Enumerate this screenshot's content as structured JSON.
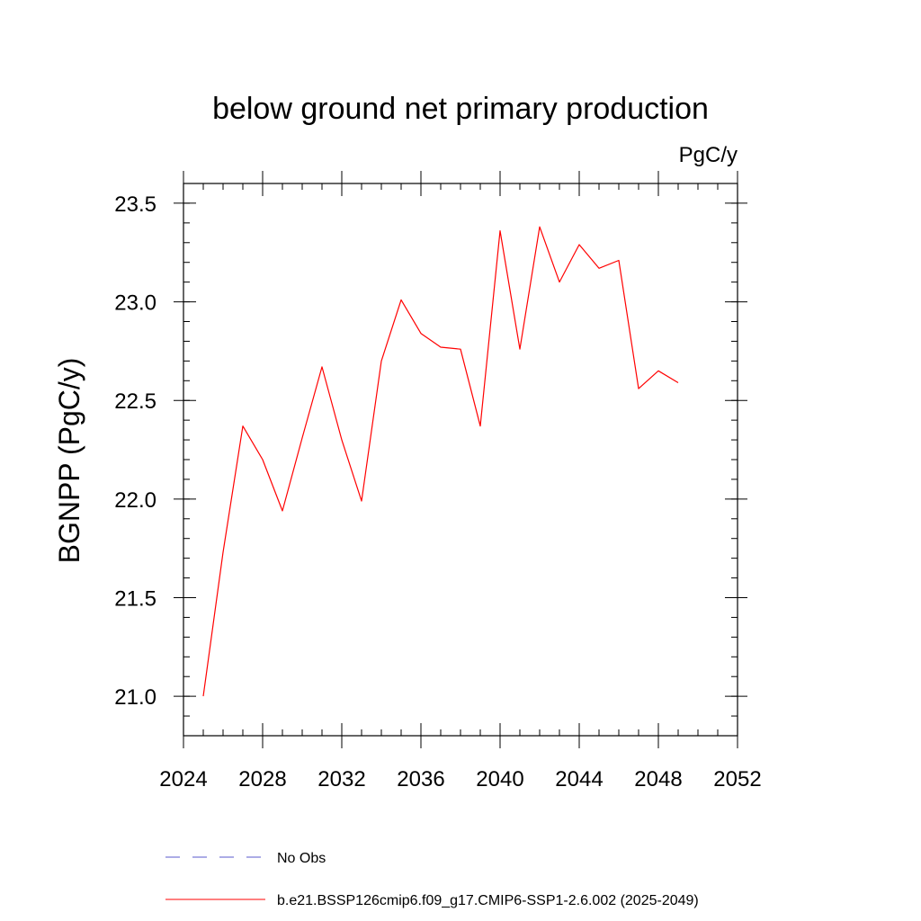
{
  "chart_data": {
    "type": "line",
    "title": "below ground net primary production",
    "units_label": "PgC/y",
    "ylabel": "BGNPP  (PgC/y)",
    "xlabel": "",
    "xlim": [
      2024,
      2052
    ],
    "ylim": [
      20.8,
      23.6
    ],
    "x_ticks": [
      2024,
      2028,
      2032,
      2036,
      2040,
      2044,
      2048,
      2052
    ],
    "x_tick_labels": [
      "2024",
      "2028",
      "2032",
      "2036",
      "2040",
      "2044",
      "2048",
      "2052"
    ],
    "y_ticks": [
      21.0,
      21.5,
      22.0,
      22.5,
      23.0,
      23.5
    ],
    "y_tick_labels": [
      "21.0",
      "21.5",
      "22.0",
      "22.5",
      "23.0",
      "23.5"
    ],
    "grid": false,
    "legend_position": "bottom",
    "series": [
      {
        "name": "No Obs",
        "color": "#5a5acd",
        "dash": "dashed",
        "x": [],
        "y": []
      },
      {
        "name": "b.e21.BSSP126cmip6.f09_g17.CMIP6-SSP1-2.6.002 (2025-2049)",
        "color": "#ff0000",
        "dash": "solid",
        "x": [
          2025,
          2026,
          2027,
          2028,
          2029,
          2030,
          2031,
          2032,
          2033,
          2034,
          2035,
          2036,
          2037,
          2038,
          2039,
          2040,
          2041,
          2042,
          2043,
          2044,
          2045,
          2046,
          2047,
          2048,
          2049
        ],
        "y": [
          21.0,
          21.73,
          22.37,
          22.2,
          21.94,
          22.31,
          22.67,
          22.3,
          21.99,
          22.7,
          23.01,
          22.84,
          22.77,
          22.76,
          22.37,
          23.36,
          22.76,
          23.38,
          23.1,
          23.29,
          23.17,
          23.21,
          22.56,
          22.65,
          22.59
        ]
      }
    ]
  }
}
